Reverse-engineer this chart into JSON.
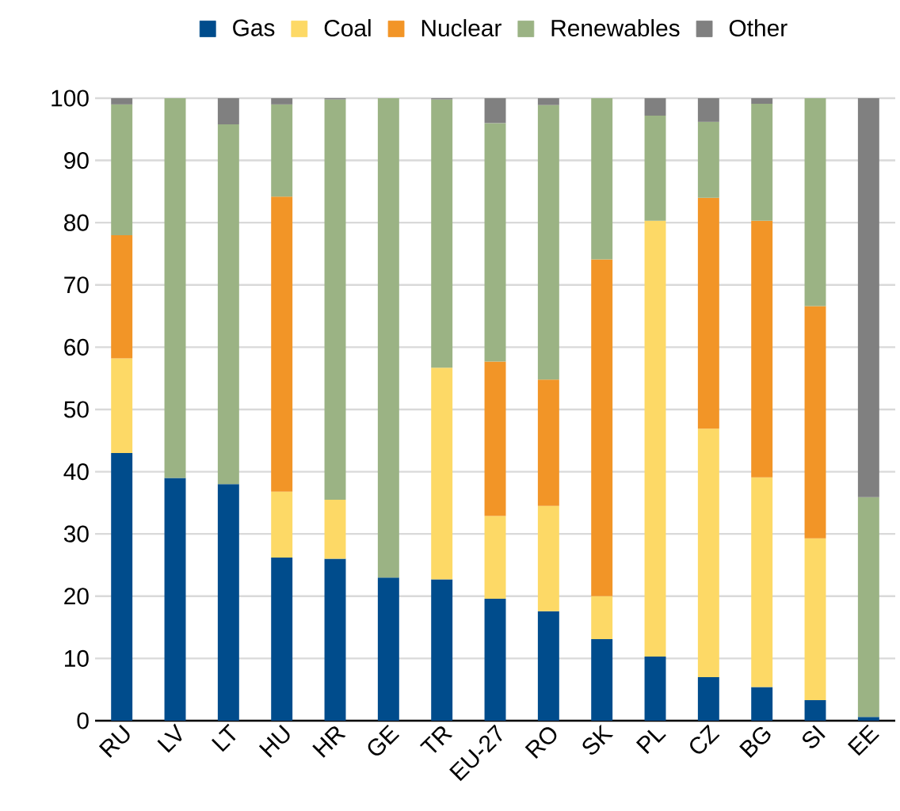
{
  "chart_data": {
    "type": "bar",
    "stacked": true,
    "categories": [
      "RU",
      "LV",
      "LT",
      "HU",
      "HR",
      "GE",
      "TR",
      "EU-27",
      "RO",
      "SK",
      "PL",
      "CZ",
      "BG",
      "SI",
      "EE"
    ],
    "series": [
      {
        "name": "Gas",
        "color": "#004c8c",
        "values": [
          43,
          39,
          38,
          26.2,
          26,
          23,
          22.7,
          19.6,
          17.6,
          13.1,
          10.3,
          7.0,
          5.4,
          3.3,
          0.6
        ]
      },
      {
        "name": "Coal",
        "color": "#fdd966",
        "values": [
          15.2,
          0,
          0,
          10.6,
          9.5,
          0,
          34,
          13.3,
          16.9,
          6.9,
          70,
          39.9,
          33.7,
          26,
          0
        ]
      },
      {
        "name": "Nuclear",
        "color": "#f29527",
        "values": [
          19.8,
          0,
          0,
          47.4,
          0,
          0,
          0,
          24.8,
          20.3,
          54.1,
          0,
          37.1,
          41.2,
          37.3,
          0
        ]
      },
      {
        "name": "Renewables",
        "color": "#9bb384",
        "values": [
          21,
          61,
          57.8,
          14.8,
          64.3,
          77,
          43.1,
          38.3,
          44.1,
          25.9,
          16.9,
          12.2,
          18.8,
          33.4,
          35.3
        ]
      },
      {
        "name": "Other",
        "color": "#808080",
        "values": [
          1,
          0,
          4.2,
          1,
          0.2,
          0,
          0.2,
          4,
          1.1,
          0,
          2.8,
          3.8,
          0.9,
          0,
          64.1
        ]
      }
    ],
    "ylim": [
      0,
      100
    ],
    "yticks": [
      0,
      10,
      20,
      30,
      40,
      50,
      60,
      70,
      80,
      90,
      100
    ],
    "grid": "y",
    "legend": "top"
  }
}
